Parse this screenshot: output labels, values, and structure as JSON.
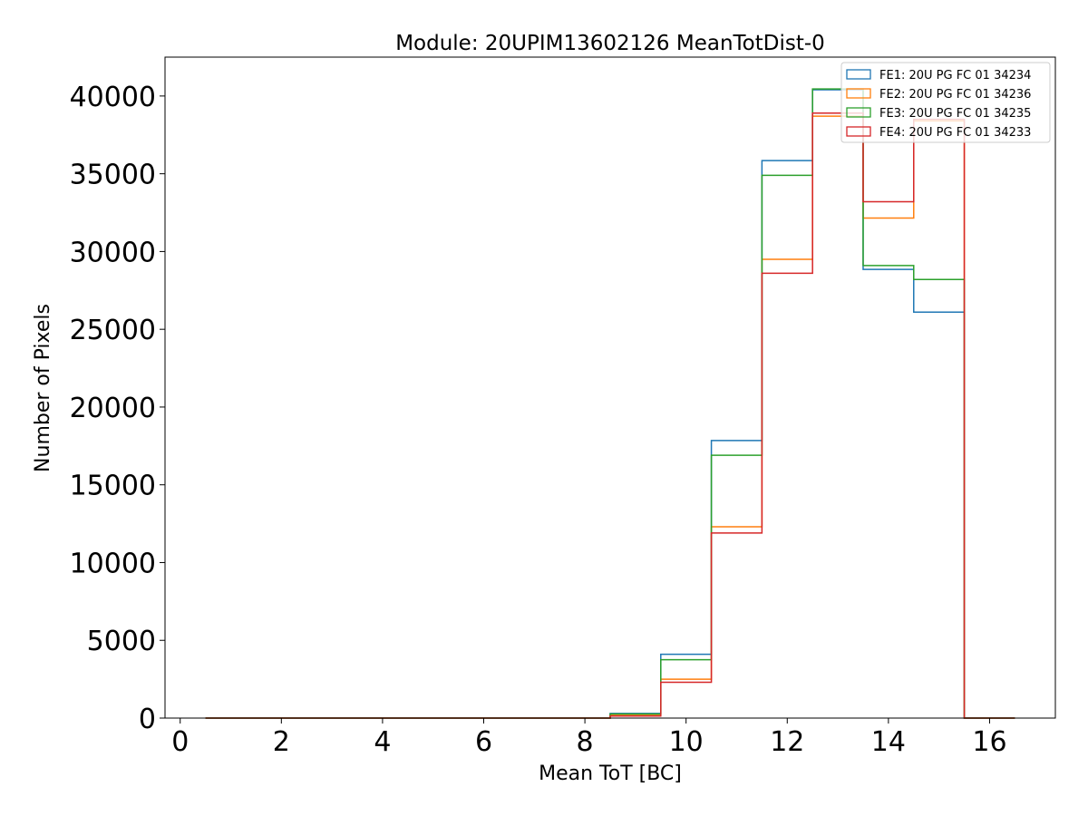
{
  "chart_data": {
    "type": "histogram",
    "title": "Module: 20UPIM13602126 MeanTotDist-0",
    "xlabel": "Mean ToT [BC]",
    "ylabel": "Number of Pixels",
    "xlim": [
      -0.3,
      17.3
    ],
    "ylim": [
      0,
      42500
    ],
    "xticks": [
      0,
      2,
      4,
      6,
      8,
      10,
      12,
      14,
      16
    ],
    "yticks": [
      0,
      5000,
      10000,
      15000,
      20000,
      25000,
      30000,
      35000,
      40000
    ],
    "bin_edges": [
      0.5,
      1.5,
      2.5,
      3.5,
      4.5,
      5.5,
      6.5,
      7.5,
      8.5,
      9.5,
      10.5,
      11.5,
      12.5,
      13.5,
      14.5,
      15.5,
      16.5
    ],
    "legend_position": "top-right",
    "series": [
      {
        "name": "FE1: 20U PG FC 01 34234",
        "color": "#1f77b4",
        "values": [
          0,
          0,
          0,
          0,
          0,
          0,
          0,
          0,
          300,
          4100,
          17850,
          35850,
          40400,
          28850,
          26100,
          0
        ]
      },
      {
        "name": "FE2: 20U PG FC 01 34236",
        "color": "#ff7f0e",
        "values": [
          0,
          0,
          0,
          0,
          0,
          0,
          0,
          0,
          180,
          2500,
          12300,
          29500,
          38700,
          32150,
          38400,
          0
        ]
      },
      {
        "name": "FE3: 20U PG FC 01 34235",
        "color": "#2ca02c",
        "values": [
          0,
          0,
          0,
          0,
          0,
          0,
          0,
          0,
          260,
          3750,
          16900,
          34900,
          40450,
          29100,
          28200,
          0
        ]
      },
      {
        "name": "FE4: 20U PG FC 01 34233",
        "color": "#d62728",
        "values": [
          0,
          0,
          0,
          0,
          0,
          0,
          0,
          0,
          130,
          2300,
          11900,
          28600,
          38900,
          33200,
          38500,
          0
        ]
      }
    ]
  }
}
